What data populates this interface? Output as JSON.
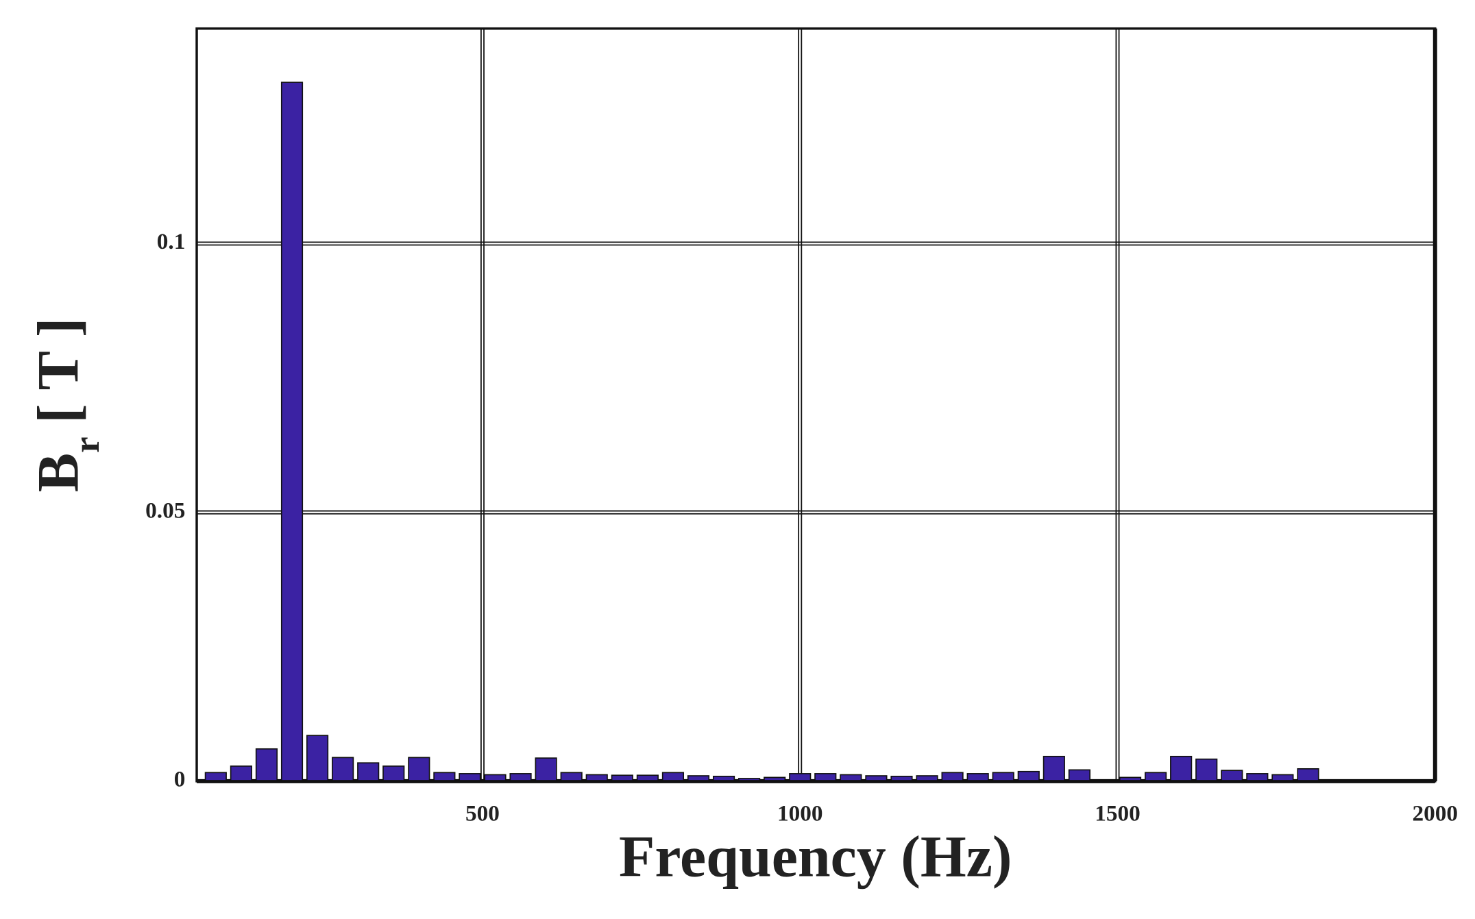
{
  "chart_data": {
    "type": "bar",
    "xlabel": "Frequency (Hz)",
    "ylabel": {
      "main": "B",
      "subscript": "r",
      "unit": "[ T ]"
    },
    "x": [
      80,
      120,
      160,
      200,
      240,
      280,
      320,
      360,
      400,
      440,
      480,
      520,
      560,
      600,
      640,
      680,
      720,
      760,
      800,
      840,
      880,
      920,
      960,
      1000,
      1040,
      1080,
      1120,
      1160,
      1200,
      1240,
      1280,
      1320,
      1360,
      1400,
      1440,
      1480,
      1520,
      1560,
      1600,
      1640,
      1680,
      1720,
      1760,
      1800
    ],
    "values": [
      0.0016,
      0.0028,
      0.006,
      0.13,
      0.0085,
      0.0044,
      0.0034,
      0.0028,
      0.0044,
      0.0016,
      0.0014,
      0.0012,
      0.0014,
      0.0043,
      0.0016,
      0.0012,
      0.0011,
      0.0011,
      0.0016,
      0.001,
      0.0009,
      0.0005,
      0.0007,
      0.0014,
      0.0014,
      0.0012,
      0.001,
      0.0009,
      0.001,
      0.0016,
      0.0014,
      0.0016,
      0.0018,
      0.0046,
      0.0021,
      0.0002,
      0.0007,
      0.0016,
      0.0046,
      0.0041,
      0.002,
      0.0014,
      0.0012,
      0.0023
    ],
    "color": "#3b22a3",
    "xlim": [
      50,
      2000
    ],
    "ylim": [
      0,
      0.14
    ],
    "xticks": [
      500,
      1000,
      1500,
      2000
    ],
    "yticks": [
      0,
      0.05,
      0.1
    ],
    "grid": true
  }
}
